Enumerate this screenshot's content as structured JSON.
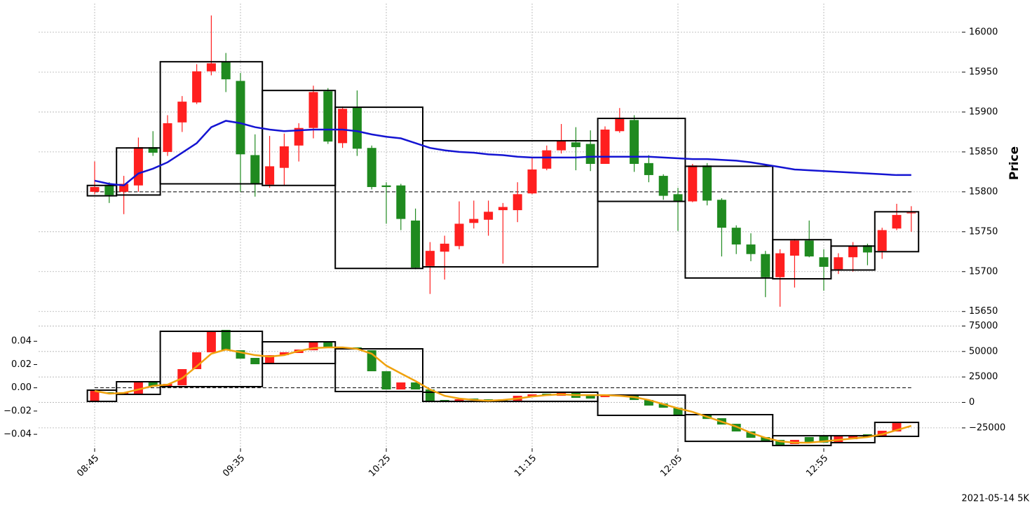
{
  "chart_data": [
    {
      "type": "candlestick",
      "ylabel": "Price",
      "ylim": [
        15641,
        16036
      ],
      "yticks": [
        15650,
        15700,
        15750,
        15800,
        15850,
        15900,
        15950,
        16000
      ],
      "grid": true,
      "up_color": "#ff1f1f",
      "down_color": "#1f8a1f",
      "open": [
        15800,
        15808,
        15800,
        15808,
        15856,
        15850,
        15887,
        15912,
        15951,
        15963,
        15939,
        15846,
        15809,
        15830,
        15858,
        15880,
        15926,
        15861,
        15906,
        15855,
        15808,
        15808,
        15764,
        15707,
        15725,
        15732,
        15761,
        15765,
        15777,
        15777,
        15798,
        15829,
        15852,
        15862,
        15860,
        15835,
        15876,
        15890,
        15836,
        15820,
        15797,
        15788,
        15833,
        15790,
        15755,
        15734,
        15722,
        15693,
        15720,
        15739,
        15718,
        15703,
        15718,
        15733,
        15726,
        15754,
        15773
      ],
      "high": [
        15838,
        15812,
        15820,
        15868,
        15876,
        15896,
        15920,
        15960,
        16021,
        15974,
        15949,
        15872,
        15870,
        15873,
        15886,
        15933,
        15930,
        15907,
        15927,
        15858,
        15812,
        15810,
        15779,
        15737,
        15745,
        15788,
        15789,
        15789,
        15786,
        15812,
        15843,
        15858,
        15885,
        15881,
        15877,
        15882,
        15905,
        15896,
        15846,
        15822,
        15805,
        15835,
        15836,
        15792,
        15758,
        15748,
        15726,
        15728,
        15741,
        15764,
        15728,
        15723,
        15737,
        15735,
        15755,
        15785,
        15782
      ],
      "low": [
        15797,
        15786,
        15772,
        15800,
        15845,
        15845,
        15875,
        15910,
        15946,
        15925,
        15800,
        15794,
        15805,
        15808,
        15838,
        15867,
        15860,
        15855,
        15845,
        15803,
        15760,
        15752,
        15703,
        15672,
        15690,
        15728,
        15754,
        15745,
        15710,
        15762,
        15797,
        15827,
        15848,
        15827,
        15826,
        15835,
        15874,
        15825,
        15812,
        15790,
        15751,
        15787,
        15783,
        15719,
        15722,
        15713,
        15668,
        15656,
        15680,
        15718,
        15676,
        15697,
        15700,
        15708,
        15716,
        15752,
        15750
      ],
      "close": [
        15806,
        15796,
        15810,
        15856,
        15849,
        15886,
        15913,
        15951,
        15961,
        15941,
        15847,
        15810,
        15832,
        15857,
        15880,
        15925,
        15863,
        15904,
        15854,
        15806,
        15806,
        15766,
        15705,
        15726,
        15735,
        15760,
        15766,
        15775,
        15781,
        15797,
        15828,
        15852,
        15864,
        15856,
        15835,
        15878,
        15893,
        15835,
        15821,
        15795,
        15788,
        15833,
        15789,
        15755,
        15734,
        15722,
        15693,
        15723,
        15739,
        15719,
        15706,
        15718,
        15732,
        15724,
        15752,
        15771,
        15774
      ],
      "line": {
        "color": "#1414d2",
        "values": [
          15814,
          15810,
          15808,
          15823,
          15829,
          15837,
          15849,
          15861,
          15881,
          15889,
          15886,
          15881,
          15878,
          15876,
          15877,
          15878,
          15878,
          15878,
          15876,
          15872,
          15869,
          15867,
          15861,
          15855,
          15852,
          15850,
          15849,
          15847,
          15846,
          15844,
          15843,
          15843,
          15843,
          15843,
          15844,
          15844,
          15844,
          15844,
          15844,
          15843,
          15842,
          15841,
          15841,
          15840,
          15839,
          15837,
          15834,
          15831,
          15828,
          15827,
          15826,
          15825,
          15824,
          15823,
          15822,
          15821,
          15821
        ]
      },
      "hline": 15800,
      "boxes": [
        {
          "start": 0,
          "end": 1,
          "top": 15808,
          "bottom": 15795
        },
        {
          "start": 2,
          "end": 4,
          "top": 15855,
          "bottom": 15796
        },
        {
          "start": 5,
          "end": 11,
          "top": 15963,
          "bottom": 15810
        },
        {
          "start": 12,
          "end": 16,
          "top": 15927,
          "bottom": 15808
        },
        {
          "start": 17,
          "end": 22,
          "top": 15906,
          "bottom": 15704
        },
        {
          "start": 23,
          "end": 34,
          "top": 15864,
          "bottom": 15706
        },
        {
          "start": 35,
          "end": 40,
          "top": 15892,
          "bottom": 15788
        },
        {
          "start": 41,
          "end": 46,
          "top": 15832,
          "bottom": 15692
        },
        {
          "start": 47,
          "end": 50,
          "top": 15740,
          "bottom": 15691
        },
        {
          "start": 51,
          "end": 53,
          "top": 15732,
          "bottom": 15702
        },
        {
          "start": 54,
          "end": 56,
          "top": 15775,
          "bottom": 15725
        }
      ]
    },
    {
      "type": "candlestick",
      "categories": [
        "08:45",
        null,
        null,
        null,
        null,
        null,
        null,
        null,
        null,
        null,
        "09:35",
        null,
        null,
        null,
        null,
        null,
        null,
        null,
        null,
        null,
        "10:25",
        null,
        null,
        null,
        null,
        null,
        null,
        null,
        null,
        null,
        "11:15",
        null,
        null,
        null,
        null,
        null,
        null,
        null,
        null,
        null,
        "12:05",
        null,
        null,
        null,
        null,
        null,
        null,
        null,
        null,
        null,
        "12:55",
        null,
        null,
        null,
        null,
        null,
        null
      ],
      "ylim": [
        -45000,
        76000
      ],
      "yticks": [
        {
          "value": -25000,
          "label": "−25000"
        },
        0,
        25000,
        50000,
        75000
      ],
      "y2lim": [
        -0.052,
        0.054
      ],
      "y2ticks": [
        {
          "value": -0.04,
          "label": "−0.04"
        },
        {
          "value": -0.02,
          "label": "−0.02"
        },
        {
          "value": 0,
          "label": "0.00"
        },
        {
          "value": 0.02,
          "label": "0.02"
        },
        {
          "value": 0.04,
          "label": "0.04"
        }
      ],
      "grid": true,
      "up_color": "#ff1f1f",
      "down_color": "#1f8a1f",
      "open": [
        1000,
        10000,
        8600,
        8600,
        20300,
        16200,
        16800,
        32700,
        49200,
        71200,
        51200,
        43700,
        37500,
        46400,
        48500,
        51200,
        59500,
        52600,
        54000,
        51200,
        30600,
        12700,
        19600,
        12700,
        2400,
        1000,
        3800,
        3100,
        3100,
        1700,
        5800,
        8600,
        6500,
        9300,
        7900,
        5200,
        6500,
        6500,
        2400,
        -1000,
        -5200,
        -12700,
        -12000,
        -15500,
        -21000,
        -28500,
        -34000,
        -36800,
        -40900,
        -34000,
        -33300,
        -39500,
        -36100,
        -31300,
        -32700,
        -28500,
        -20300
      ],
      "close": [
        11300,
        8600,
        10000,
        20300,
        15500,
        18200,
        32700,
        49200,
        69800,
        51200,
        43000,
        37500,
        46400,
        49200,
        51900,
        59500,
        53300,
        54000,
        51900,
        30600,
        12700,
        19600,
        12700,
        1000,
        1000,
        3100,
        2400,
        1700,
        1700,
        6500,
        7900,
        6500,
        10000,
        4500,
        3800,
        7200,
        7900,
        2400,
        -3100,
        -5200,
        -12000,
        -11300,
        -16200,
        -21700,
        -28500,
        -34700,
        -38200,
        -42300,
        -36800,
        -38800,
        -39500,
        -32700,
        -32700,
        -34000,
        -27800,
        -20300,
        -19600
      ],
      "line": {
        "color": "#f0a20e",
        "values": [
          11300,
          8600,
          9300,
          12700,
          16200,
          17500,
          23700,
          35400,
          47800,
          51900,
          49200,
          46400,
          45000,
          46400,
          50500,
          53300,
          54000,
          54000,
          52600,
          47800,
          36100,
          28500,
          21000,
          12700,
          6500,
          3800,
          2400,
          1700,
          2400,
          3800,
          5800,
          7200,
          7900,
          7200,
          7200,
          7200,
          6500,
          5200,
          2400,
          -1700,
          -5800,
          -9300,
          -14100,
          -18900,
          -23700,
          -29900,
          -34700,
          -38200,
          -39500,
          -39500,
          -38200,
          -36800,
          -35400,
          -34000,
          -31300,
          -27200,
          -23000
        ]
      },
      "hline_y2": 0,
      "boxes": [
        {
          "start": 0,
          "end": 1,
          "top": 12000,
          "bottom": 1000
        },
        {
          "start": 2,
          "end": 4,
          "top": 20300,
          "bottom": 7900
        },
        {
          "start": 5,
          "end": 11,
          "top": 69800,
          "bottom": 15500
        },
        {
          "start": 12,
          "end": 16,
          "top": 59500,
          "bottom": 38200
        },
        {
          "start": 17,
          "end": 22,
          "top": 52600,
          "bottom": 10700
        },
        {
          "start": 23,
          "end": 34,
          "top": 10000,
          "bottom": 1000
        },
        {
          "start": 35,
          "end": 40,
          "top": 7200,
          "bottom": -12700
        },
        {
          "start": 41,
          "end": 46,
          "top": -12000,
          "bottom": -38200
        },
        {
          "start": 47,
          "end": 50,
          "top": -32700,
          "bottom": -42300
        },
        {
          "start": 51,
          "end": 53,
          "top": -32700,
          "bottom": -39500
        },
        {
          "start": 54,
          "end": 56,
          "top": -19600,
          "bottom": -33300
        }
      ],
      "annotation": "2021-05-14 5K"
    }
  ]
}
